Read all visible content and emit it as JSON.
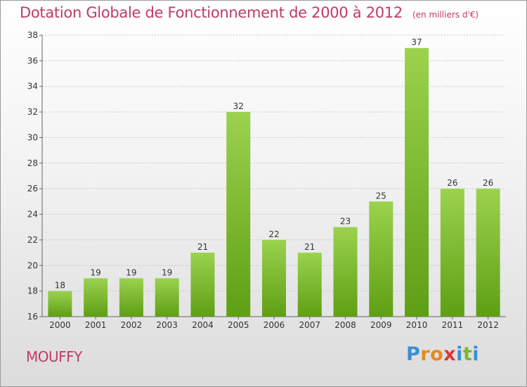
{
  "header": {
    "title": "Dotation Globale de Fonctionnement de 2000 à 2012",
    "unit": "(en milliers d'€)"
  },
  "footer": {
    "place": "MOUFFY",
    "logo_letters": [
      "P",
      "r",
      "o",
      "x",
      "i",
      "t",
      "i"
    ],
    "logo_colors": [
      "#3a8fd6",
      "#e58a1f",
      "#e58a1f",
      "#d63a3a",
      "#3a8fd6",
      "#7ab82e",
      "#3a8fd6"
    ]
  },
  "chart_data": {
    "type": "bar",
    "title": "Dotation Globale de Fonctionnement de 2000 à 2012",
    "subtitle": "(en milliers d'€)",
    "xlabel": "",
    "ylabel": "",
    "categories": [
      "2000",
      "2001",
      "2002",
      "2003",
      "2004",
      "2005",
      "2006",
      "2007",
      "2008",
      "2009",
      "2010",
      "2011",
      "2012"
    ],
    "values": [
      18,
      19,
      19,
      19,
      21,
      32,
      22,
      21,
      23,
      25,
      37,
      26,
      26
    ],
    "ylim": [
      16,
      38
    ],
    "yticks": [
      16,
      18,
      20,
      22,
      24,
      26,
      28,
      30,
      32,
      34,
      36,
      38
    ],
    "grid": true,
    "bar_color_top": "#9bd24e",
    "bar_color_bottom": "#5e9f14"
  }
}
